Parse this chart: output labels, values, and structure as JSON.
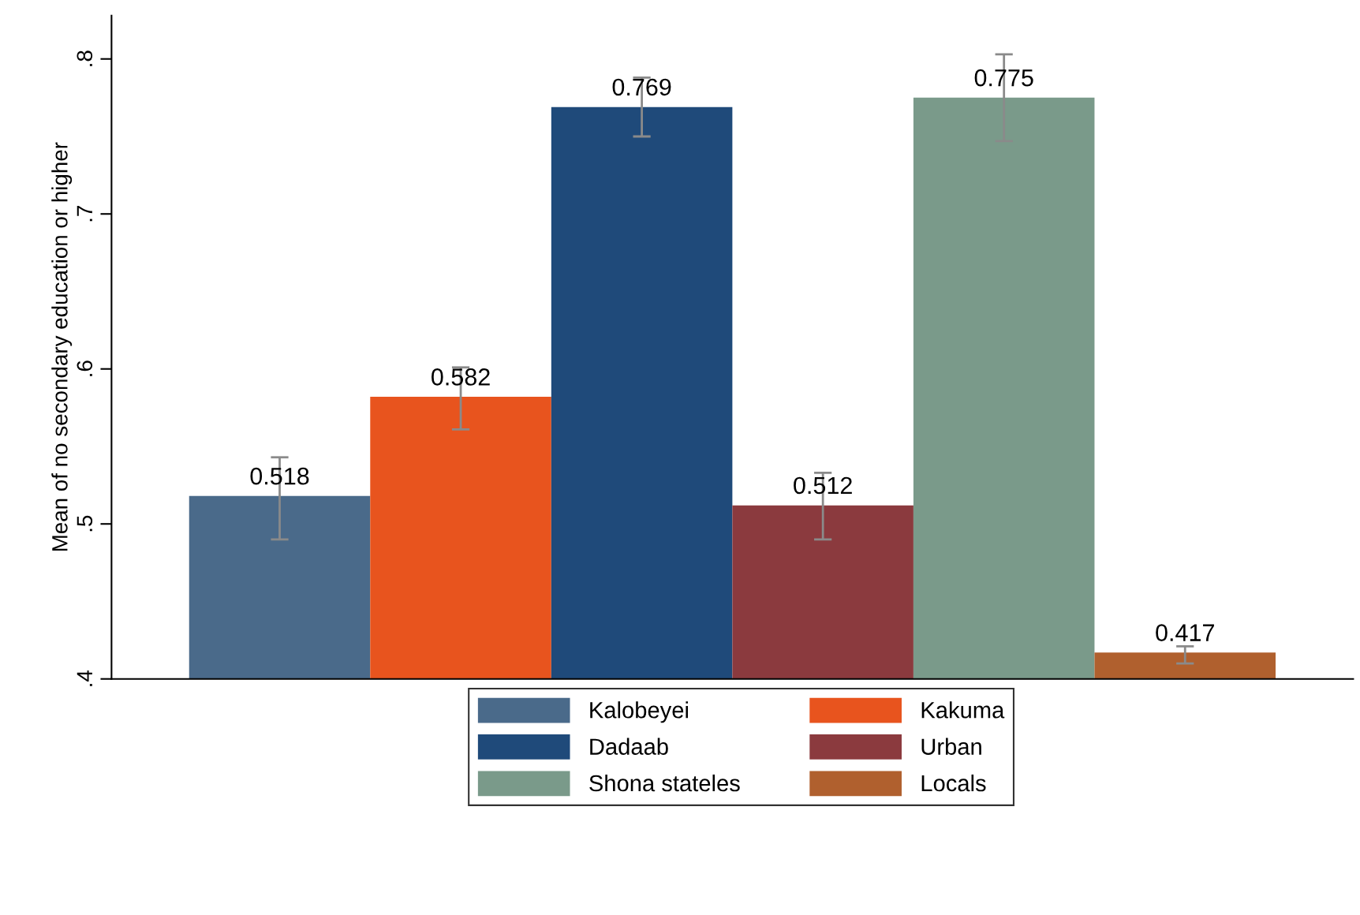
{
  "chart_data": {
    "type": "bar",
    "ylabel": "Mean of no secondary education or higher",
    "categories": [
      null
    ],
    "series": [
      {
        "name": "Kalobeyei",
        "color": "#4a6a8a",
        "values": [
          0.518
        ],
        "errors": [
          [
            0.49,
            0.543
          ]
        ]
      },
      {
        "name": "Kakuma",
        "color": "#e8541e",
        "values": [
          0.582
        ],
        "errors": [
          [
            0.561,
            0.601
          ]
        ]
      },
      {
        "name": "Dadaab",
        "color": "#1f4a7a",
        "values": [
          0.769
        ],
        "errors": [
          [
            0.75,
            0.788
          ]
        ]
      },
      {
        "name": "Urban",
        "color": "#8b3a3e",
        "values": [
          0.512
        ],
        "errors": [
          [
            0.49,
            0.533
          ]
        ]
      },
      {
        "name": "Shona stateles",
        "color": "#7a9a8a",
        "values": [
          0.775
        ],
        "errors": [
          [
            0.747,
            0.803
          ]
        ]
      },
      {
        "name": "Locals",
        "color": "#b0602e",
        "values": [
          0.417
        ],
        "errors": [
          [
            0.41,
            0.421
          ]
        ]
      }
    ],
    "ylim": [
      0.4,
      0.828
    ],
    "yticks": [
      {
        "value": 0.4,
        "label": ".4"
      },
      {
        "value": 0.5,
        "label": ".5"
      },
      {
        "value": 0.6,
        "label": ".6"
      },
      {
        "value": 0.7,
        "label": ".7"
      },
      {
        "value": 0.8,
        "label": ".8"
      }
    ],
    "data_labels": true,
    "grid": false,
    "legend": "bottom"
  }
}
